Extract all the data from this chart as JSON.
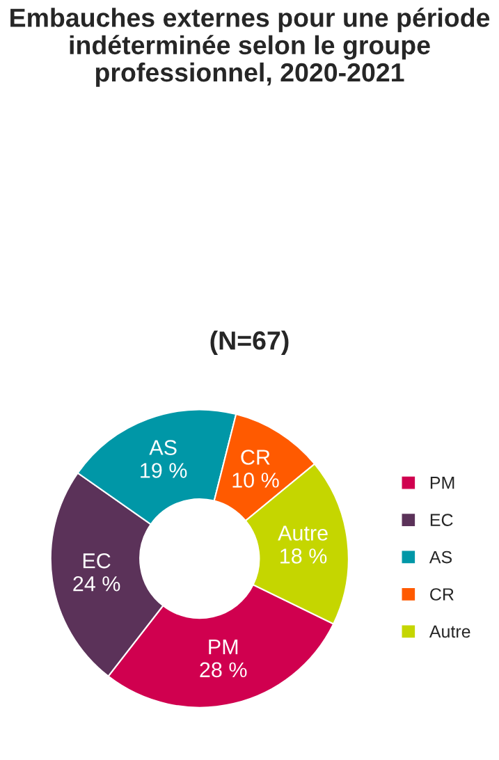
{
  "chart_data": {
    "type": "donut",
    "title": "Embauches externes pour une période indéterminée selon le groupe professionnel, 2020-2021",
    "subtitle": "(N=67)",
    "categories": [
      "PM",
      "EC",
      "AS",
      "CR",
      "Autre"
    ],
    "values": [
      28,
      24,
      19,
      10,
      18
    ],
    "value_labels": [
      "28 %",
      "24 %",
      "19 %",
      "10 %",
      "18 %"
    ],
    "colors": [
      "#d0004f",
      "#5b3259",
      "#0097a7",
      "#ff5a00",
      "#c5d600"
    ],
    "legend": "right"
  }
}
